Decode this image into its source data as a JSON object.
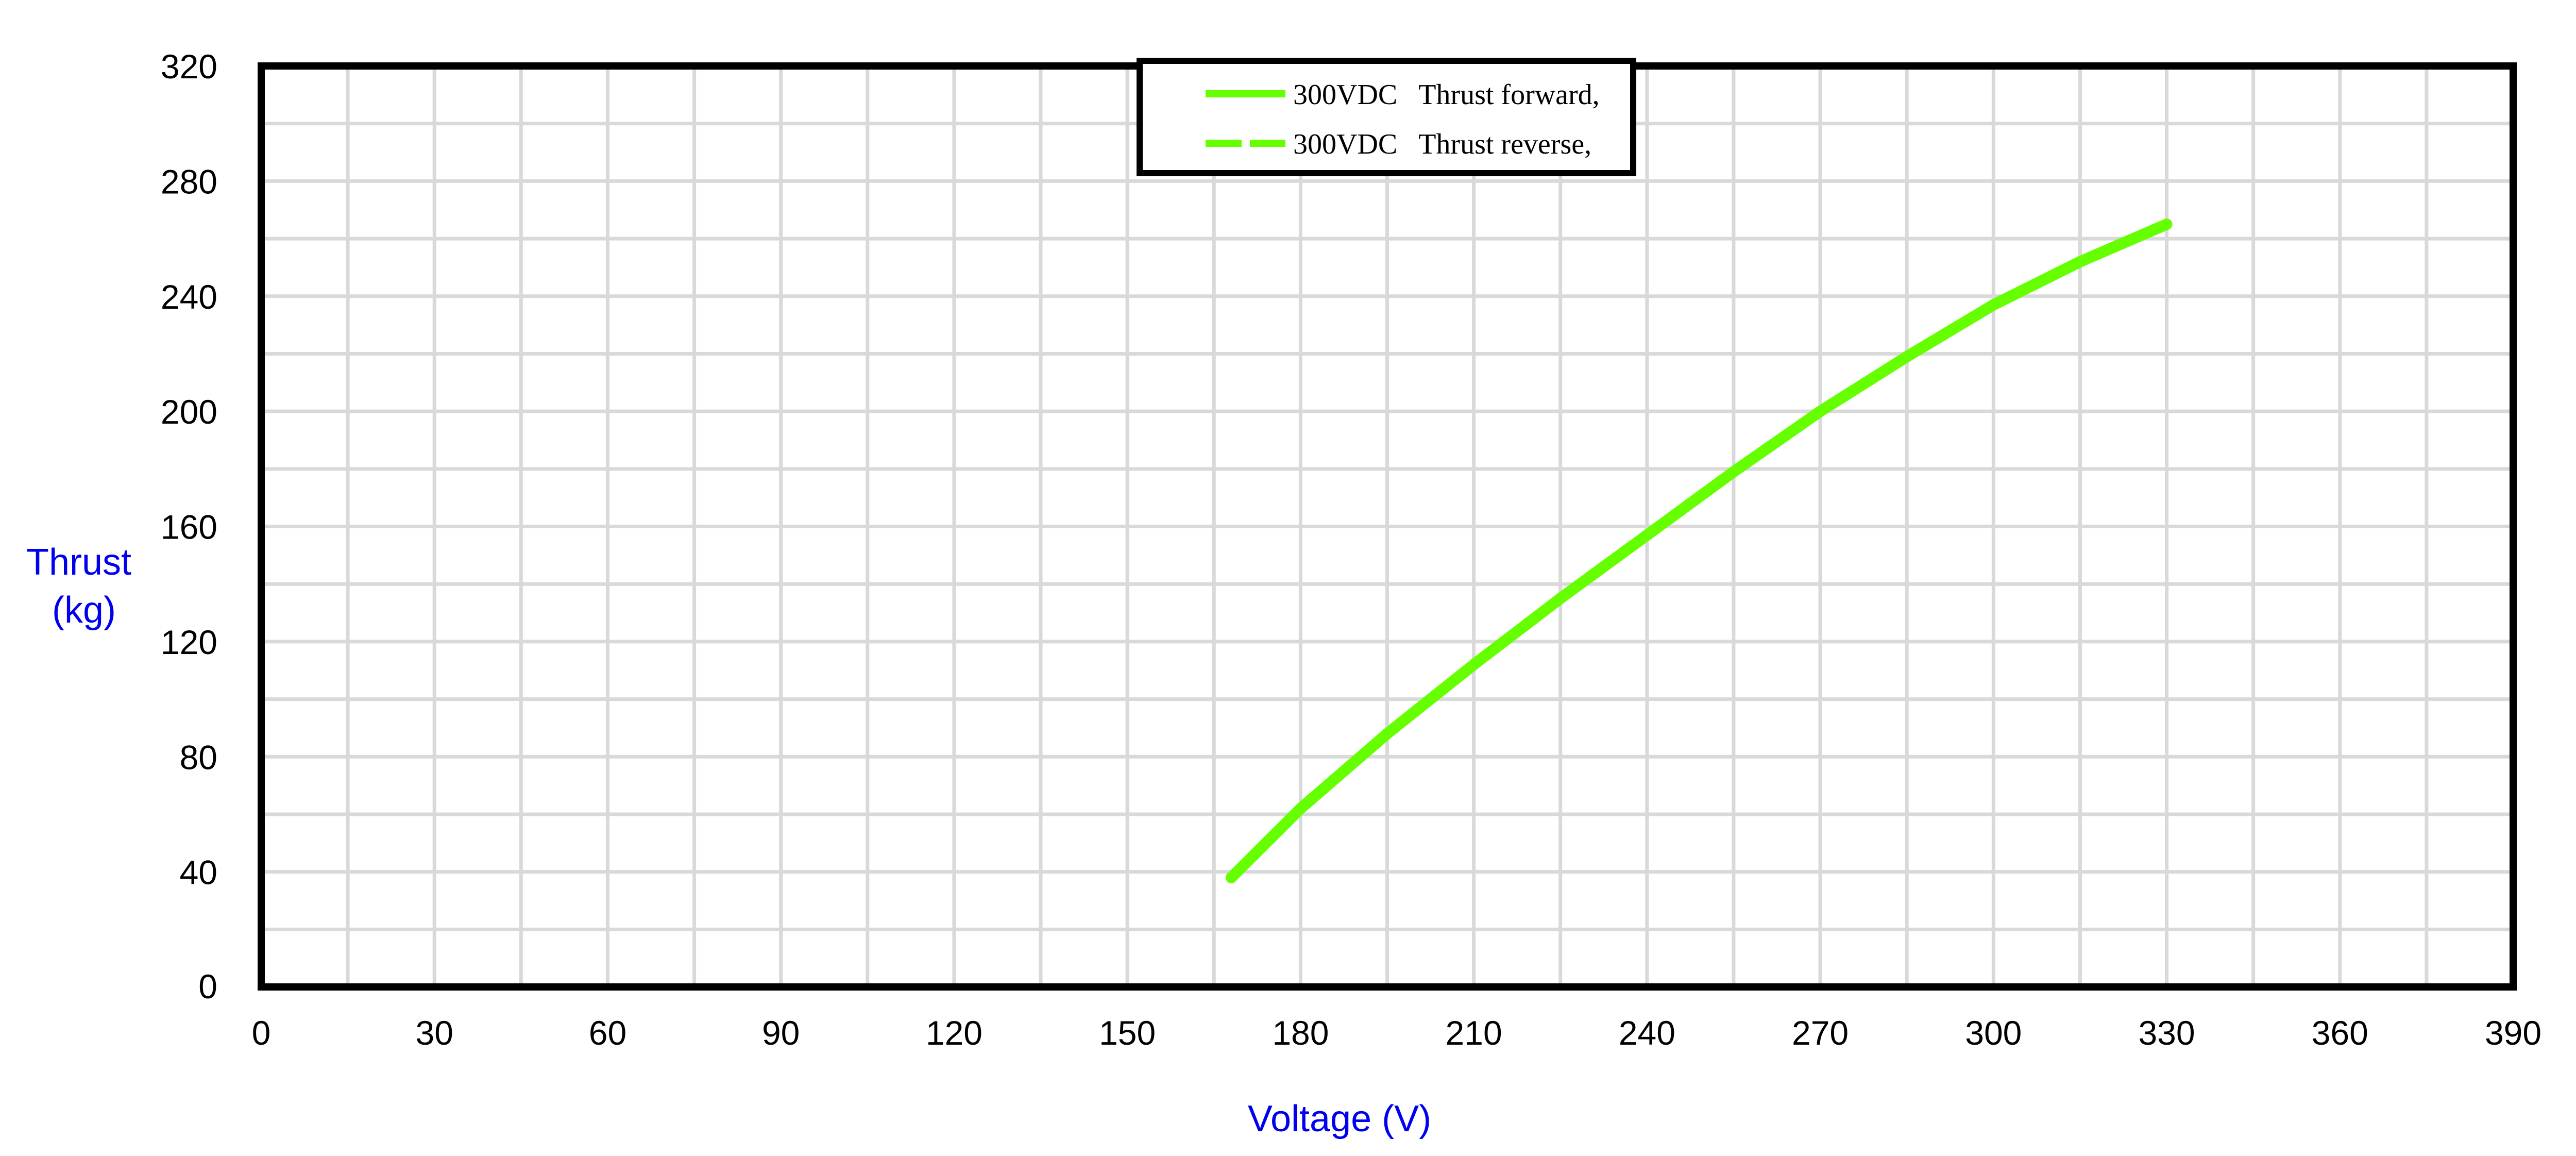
{
  "chart_data": {
    "type": "line",
    "xlabel": "Voltage (V)",
    "ylabel_lines": [
      "Thrust",
      "(kg)"
    ],
    "xlim": [
      0,
      390
    ],
    "ylim": [
      0,
      320
    ],
    "x_ticks": [
      0,
      30,
      60,
      90,
      120,
      150,
      180,
      210,
      240,
      270,
      300,
      330,
      360,
      390
    ],
    "y_ticks": [
      0,
      40,
      80,
      120,
      160,
      200,
      240,
      280,
      320
    ],
    "x_grid_step": 15,
    "y_grid_step": 20,
    "grid": true,
    "legend_position": "top-center",
    "series": [
      {
        "name": "300VDC   Thrust forward,",
        "color": "#66ff00",
        "style": "solid",
        "x": [
          168,
          180,
          195,
          210,
          225,
          240,
          255,
          270,
          285,
          300,
          315,
          330
        ],
        "y": [
          38,
          62,
          88,
          112,
          135,
          157,
          179,
          200,
          219,
          237,
          252,
          265
        ]
      },
      {
        "name": "300VDC   Thrust reverse,",
        "color": "#66ff00",
        "style": "dashed",
        "x": [
          168,
          180,
          195,
          210,
          225,
          240,
          255,
          270,
          285,
          300,
          315,
          330
        ],
        "y": [
          38,
          62,
          88,
          112,
          135,
          157,
          179,
          200,
          219,
          237,
          252,
          265
        ]
      }
    ]
  }
}
